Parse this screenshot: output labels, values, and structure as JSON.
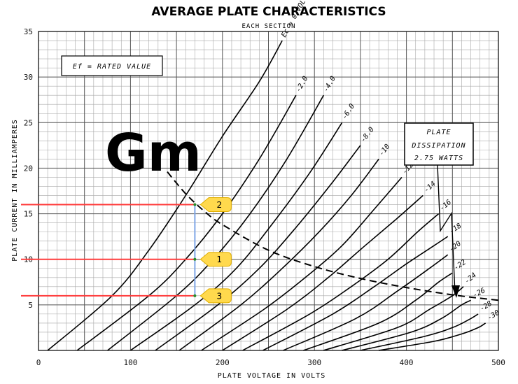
{
  "chart_data": {
    "type": "line",
    "title": "AVERAGE PLATE CHARACTERISTICS",
    "subtitle": "EACH SECTION",
    "xlabel": "PLATE VOLTAGE IN VOLTS",
    "ylabel": "PLATE CURRENT IN MILLIAMPERES",
    "xlim": [
      0,
      500
    ],
    "ylim": [
      0,
      35
    ],
    "x_ticks": [
      "0",
      "100",
      "200",
      "300",
      "400",
      "500"
    ],
    "y_ticks": [
      "5",
      "10",
      "15",
      "20",
      "25",
      "30",
      "35"
    ],
    "grid": true,
    "ef_label": "Ef = RATED VALUE",
    "overlay_label": "Gm",
    "dissipation_box": [
      "PLATE",
      "DISSIPATION",
      "2.75 WATTS"
    ],
    "dissipation_watts": 2.75,
    "series": [
      {
        "label": "Ec = 0 VOLTS",
        "ec": 0,
        "x": [
          10,
          80,
          120,
          160,
          200,
          240,
          265
        ],
        "y": [
          0,
          6,
          11,
          17,
          23.5,
          29.5,
          34
        ]
      },
      {
        "label": "-2.0",
        "ec": -2.0,
        "x": [
          42,
          120,
          160,
          200,
          240,
          280
        ],
        "y": [
          0,
          6,
          10,
          15,
          21,
          28
        ]
      },
      {
        "label": "-4.0",
        "ec": -4.0,
        "x": [
          75,
          150,
          190,
          230,
          270,
          310
        ],
        "y": [
          0,
          6,
          10,
          15,
          21,
          28
        ]
      },
      {
        "label": "-6.0",
        "ec": -6.0,
        "x": [
          100,
          170,
          215,
          255,
          295,
          330
        ],
        "y": [
          0,
          5,
          9,
          14,
          19.5,
          25
        ]
      },
      {
        "label": "-8.0",
        "ec": -8.0,
        "x": [
          127,
          195,
          240,
          280,
          320,
          350
        ],
        "y": [
          0,
          5,
          9,
          13.5,
          18.5,
          22.5
        ]
      },
      {
        "label": "-10",
        "ec": -10,
        "x": [
          153,
          220,
          265,
          305,
          340,
          370
        ],
        "y": [
          0,
          5,
          9,
          13,
          17,
          21
        ]
      },
      {
        "label": "-12",
        "ec": -12,
        "x": [
          177,
          245,
          290,
          330,
          365,
          395
        ],
        "y": [
          0,
          4.5,
          8,
          11.5,
          15.5,
          19
        ]
      },
      {
        "label": "-14",
        "ec": -14,
        "x": [
          200,
          270,
          315,
          355,
          390,
          418
        ],
        "y": [
          0,
          4.5,
          8,
          11.5,
          14.5,
          17
        ]
      },
      {
        "label": "-16",
        "ec": -16,
        "x": [
          222,
          295,
          340,
          380,
          412,
          435
        ],
        "y": [
          0,
          4,
          7,
          10,
          13,
          15
        ]
      },
      {
        "label": "-18",
        "ec": -18,
        "x": [
          244,
          320,
          365,
          400,
          430,
          445
        ],
        "y": [
          0,
          4,
          7,
          9.5,
          11.5,
          12.5
        ]
      },
      {
        "label": "-20",
        "ec": -20,
        "x": [
          266,
          345,
          390,
          425,
          445
        ],
        "y": [
          0,
          3.5,
          6.5,
          9,
          10.5
        ]
      },
      {
        "label": "-22",
        "ec": -22,
        "x": [
          288,
          370,
          410,
          435,
          450
        ],
        "y": [
          0,
          3,
          5.5,
          7.5,
          8.5
        ]
      },
      {
        "label": "-24",
        "ec": -24,
        "x": [
          310,
          390,
          425,
          450,
          462
        ],
        "y": [
          0,
          2.5,
          4.5,
          6,
          7
        ]
      },
      {
        "label": "-26",
        "ec": -26,
        "x": [
          330,
          405,
          438,
          460,
          470
        ],
        "y": [
          0,
          2,
          3.5,
          5,
          5.5
        ]
      },
      {
        "label": "-28",
        "ec": -28,
        "x": [
          350,
          418,
          450,
          470,
          478
        ],
        "y": [
          0,
          1.5,
          2.5,
          3.5,
          4
        ]
      },
      {
        "label": "-30",
        "ec": -30,
        "x": [
          370,
          430,
          460,
          478,
          486
        ],
        "y": [
          0,
          1,
          1.8,
          2.5,
          3
        ]
      }
    ],
    "dissipation_curve": {
      "x": [
        140,
        160,
        180,
        200,
        250,
        300,
        350,
        400,
        450,
        500
      ],
      "y": [
        19.6,
        17.2,
        15.3,
        13.8,
        11.0,
        9.2,
        7.9,
        6.9,
        6.1,
        5.5
      ]
    },
    "reference_lines": [
      {
        "marker": "2",
        "current_ma": 16,
        "plate_v": 170
      },
      {
        "marker": "1",
        "current_ma": 10,
        "plate_v": 170
      },
      {
        "marker": "3",
        "current_ma": 6,
        "plate_v": 170
      }
    ],
    "colors": {
      "grid": "#8a8a8a",
      "curves": "#000000",
      "reference": "#ff3b3b",
      "vertical": "#7fa6e6",
      "marker": "#ffd94d",
      "marker_edge": "#e0ae00"
    }
  }
}
